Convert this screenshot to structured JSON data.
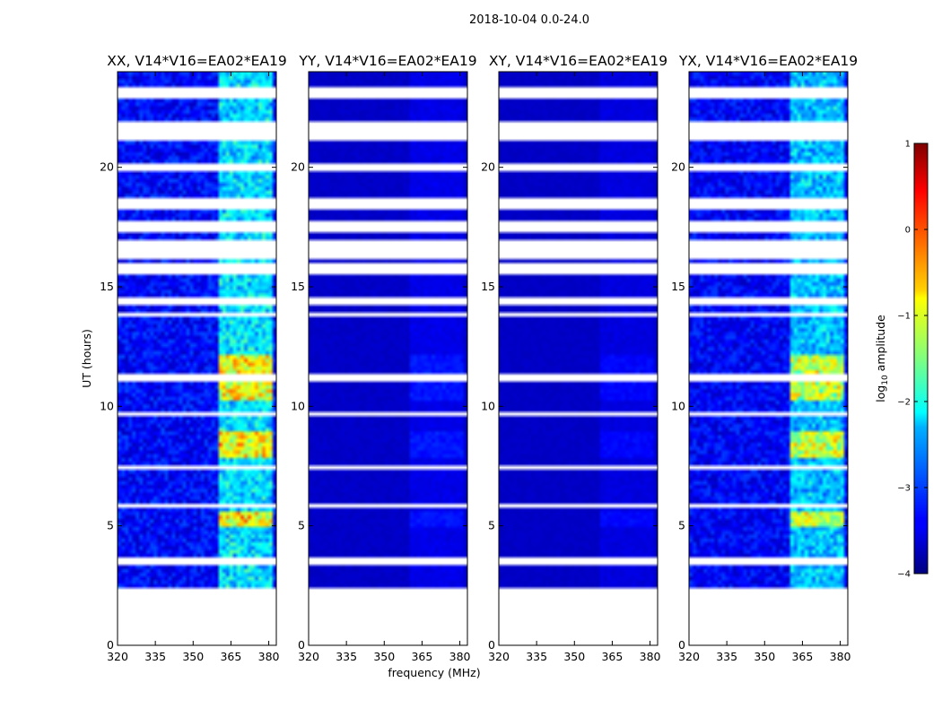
{
  "suptitle": "2018-10-04 0.0-24.0",
  "chart_data": {
    "type": "heatmap",
    "suptitle": "2018-10-04 0.0-24.0",
    "xlabel": "frequency (MHz)",
    "ylabel": "UT (hours)",
    "xlim": [
      320,
      383
    ],
    "ylim": [
      0,
      24
    ],
    "xticks": [
      320,
      335,
      350,
      365,
      380
    ],
    "yticks": [
      0,
      5,
      10,
      15,
      20
    ],
    "colorbar": {
      "label": "log10 amplitude",
      "label_base": "log",
      "label_sub": "10",
      "label_rest": " amplitude",
      "range": [
        -4,
        1
      ],
      "ticks": [
        1,
        0,
        -1,
        -2,
        -3,
        -4
      ],
      "colormap": "jet"
    },
    "data_start_hour": 2.4,
    "empty_bands_hours": [
      [
        22.9,
        23.4
      ],
      [
        21.2,
        21.9
      ],
      [
        19.9,
        20.2
      ],
      [
        18.3,
        18.7
      ],
      [
        17.3,
        17.8
      ],
      [
        16.2,
        17.0
      ],
      [
        15.6,
        16.0
      ],
      [
        14.3,
        14.6
      ],
      [
        13.8,
        14.0
      ],
      [
        11.0,
        11.4
      ],
      [
        9.55,
        9.7
      ],
      [
        7.4,
        7.6
      ],
      [
        5.7,
        5.9
      ],
      [
        3.4,
        3.6
      ]
    ],
    "strong_rfi_bands_mhz": [
      [
        360,
        381
      ]
    ],
    "rfi_hours": [
      [
        10.2,
        12.2
      ],
      [
        7.8,
        9.0
      ],
      [
        4.9,
        5.6
      ]
    ],
    "panels": [
      {
        "title": "XX, V14*V16=EA02*EA19",
        "polarization": "XX",
        "relative_level": 1.0
      },
      {
        "title": "YY, V14*V16=EA02*EA19",
        "polarization": "YY",
        "relative_level": 0.15
      },
      {
        "title": "XY, V14*V16=EA02*EA19",
        "polarization": "XY",
        "relative_level": 0.12
      },
      {
        "title": "YX, V14*V16=EA02*EA19",
        "polarization": "YX",
        "relative_level": 0.9
      }
    ]
  }
}
